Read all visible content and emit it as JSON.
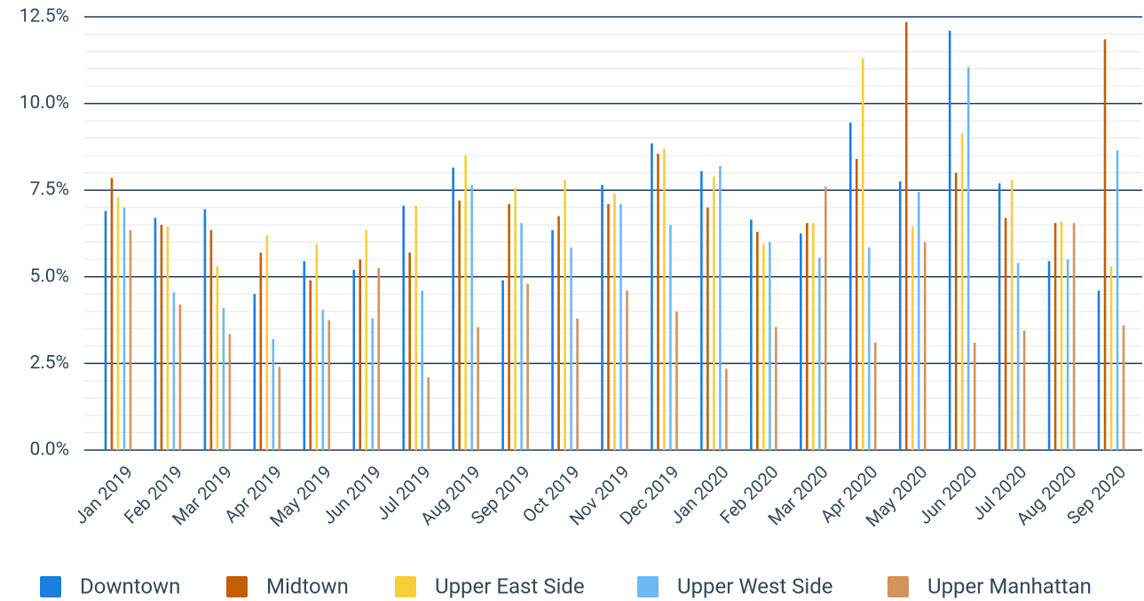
{
  "chart_data": {
    "type": "bar",
    "categories": [
      "Jan 2019",
      "Feb 2019",
      "Mar 2019",
      "Apr 2019",
      "May 2019",
      "Jun 2019",
      "Jul 2019",
      "Aug 2019",
      "Sep 2019",
      "Oct 2019",
      "Nov 2019",
      "Dec 2019",
      "Jan 2020",
      "Feb 2020",
      "Mar 2020",
      "Apr 2020",
      "May 2020",
      "Jun 2020",
      "Jul 2020",
      "Aug 2020",
      "Sep 2020"
    ],
    "series": [
      {
        "name": "Downtown",
        "color": "#1a7fe0",
        "values": [
          6.9,
          6.7,
          6.95,
          4.5,
          5.45,
          5.2,
          7.05,
          8.15,
          4.9,
          6.35,
          7.65,
          8.85,
          8.05,
          6.65,
          6.25,
          9.45,
          7.75,
          12.1,
          7.7,
          5.45,
          4.6
        ]
      },
      {
        "name": "Midtown",
        "color": "#c45e00",
        "values": [
          7.85,
          6.5,
          6.35,
          5.7,
          4.9,
          5.5,
          5.7,
          7.2,
          7.1,
          6.75,
          7.1,
          8.55,
          7.0,
          6.3,
          6.55,
          8.4,
          12.35,
          8.0,
          6.7,
          6.55,
          11.85
        ]
      },
      {
        "name": "Upper East Side",
        "color": "#f7cf35",
        "values": [
          7.3,
          6.45,
          5.3,
          6.2,
          5.95,
          6.35,
          7.05,
          8.5,
          7.55,
          7.8,
          7.4,
          8.7,
          7.9,
          5.95,
          6.55,
          11.3,
          6.45,
          9.15,
          7.8,
          6.6,
          5.3
        ]
      },
      {
        "name": "Upper West Side",
        "color": "#6db8f5",
        "values": [
          7.0,
          4.55,
          4.1,
          3.2,
          4.05,
          3.8,
          4.6,
          7.65,
          6.55,
          5.85,
          7.1,
          6.5,
          8.2,
          6.0,
          5.55,
          5.85,
          7.45,
          11.05,
          5.4,
          5.5,
          8.65
        ]
      },
      {
        "name": "Upper Manhattan",
        "color": "#d4935a",
        "values": [
          6.35,
          4.2,
          3.35,
          2.4,
          3.75,
          5.25,
          2.1,
          3.55,
          4.8,
          3.8,
          4.6,
          4.0,
          2.35,
          3.55,
          7.6,
          3.1,
          6.0,
          3.1,
          3.45,
          6.55,
          3.6
        ]
      }
    ],
    "ylim": [
      0,
      12.5
    ],
    "yticks": [
      {
        "value": 0,
        "label": "0.0%"
      },
      {
        "value": 2.5,
        "label": "2.5%"
      },
      {
        "value": 5,
        "label": "5.0%"
      },
      {
        "value": 7.5,
        "label": "7.5%"
      },
      {
        "value": 10,
        "label": "10.0%"
      },
      {
        "value": 12.5,
        "label": "12.5%"
      }
    ],
    "minor_yticks": [
      0.5,
      1,
      1.5,
      2,
      3,
      3.5,
      4,
      4.5,
      5.5,
      6,
      6.5,
      7,
      8,
      8.5,
      9,
      9.5,
      10.5,
      11,
      11.5,
      12
    ],
    "grid": true,
    "legend": "bottom"
  }
}
